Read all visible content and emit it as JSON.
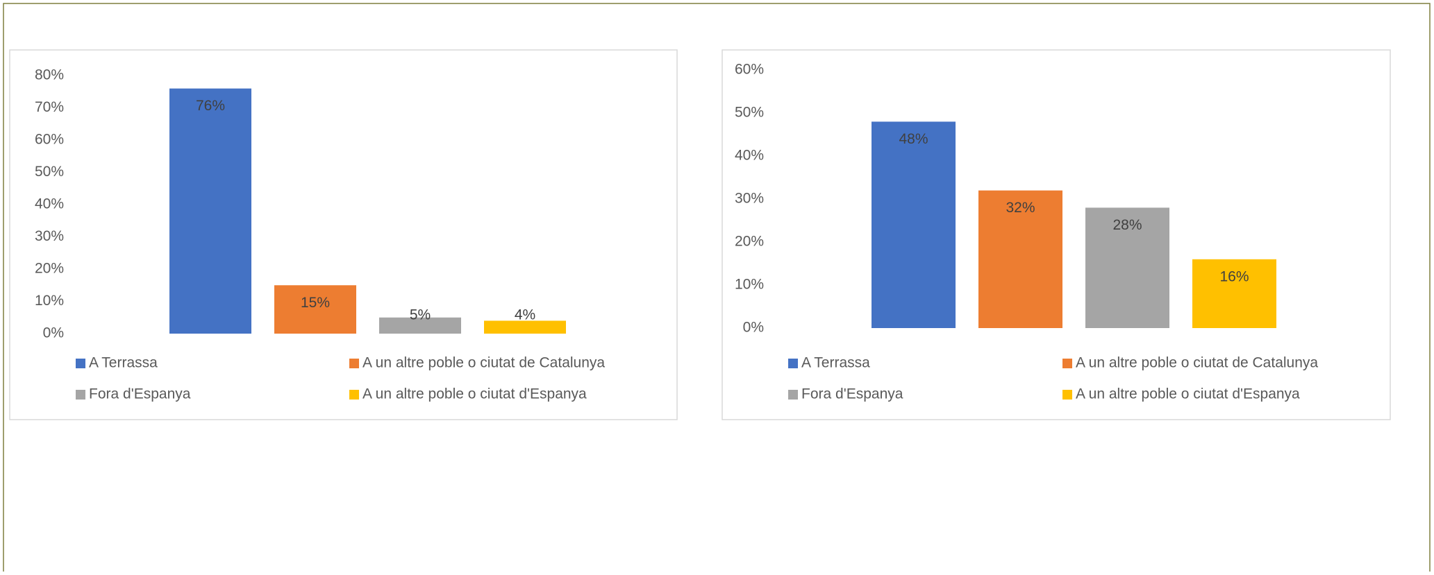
{
  "chart_data": [
    {
      "type": "bar",
      "series": [
        {
          "name": "A Terrassa",
          "color": "#4472c4",
          "values": [
            76
          ],
          "value_labels": [
            "76%"
          ]
        },
        {
          "name": "A un altre poble o ciutat de Catalunya",
          "color": "#ed7d31",
          "values": [
            15
          ],
          "value_labels": [
            "15%"
          ]
        },
        {
          "name": "Fora d'Espanya",
          "color": "#a5a5a5",
          "values": [
            5
          ],
          "value_labels": [
            "5%"
          ]
        },
        {
          "name": "A un altre poble o ciutat d'Espanya",
          "color": "#ffc000",
          "values": [
            4
          ],
          "value_labels": [
            "4%"
          ]
        }
      ],
      "ylim": [
        0,
        80
      ],
      "yticks": [
        {
          "value": 0,
          "label": "0%"
        },
        {
          "value": 10,
          "label": "10%"
        },
        {
          "value": 20,
          "label": "20%"
        },
        {
          "value": 30,
          "label": "30%"
        },
        {
          "value": 40,
          "label": "40%"
        },
        {
          "value": 50,
          "label": "50%"
        },
        {
          "value": 60,
          "label": "60%"
        },
        {
          "value": 70,
          "label": "70%"
        },
        {
          "value": 80,
          "label": "80%"
        }
      ],
      "grid": false,
      "legend": "bottom"
    },
    {
      "type": "bar",
      "series": [
        {
          "name": "A Terrassa",
          "color": "#4472c4",
          "values": [
            48
          ],
          "value_labels": [
            "48%"
          ]
        },
        {
          "name": "A un altre poble o ciutat de Catalunya",
          "color": "#ed7d31",
          "values": [
            32
          ],
          "value_labels": [
            "32%"
          ]
        },
        {
          "name": "Fora d'Espanya",
          "color": "#a5a5a5",
          "values": [
            28
          ],
          "value_labels": [
            "28%"
          ]
        },
        {
          "name": "A un altre poble o ciutat d'Espanya",
          "color": "#ffc000",
          "values": [
            16
          ],
          "value_labels": [
            "16%"
          ]
        }
      ],
      "ylim": [
        0,
        60
      ],
      "yticks": [
        {
          "value": 0,
          "label": "0%"
        },
        {
          "value": 10,
          "label": "10%"
        },
        {
          "value": 20,
          "label": "20%"
        },
        {
          "value": 30,
          "label": "30%"
        },
        {
          "value": 40,
          "label": "40%"
        },
        {
          "value": 50,
          "label": "50%"
        },
        {
          "value": 60,
          "label": "60%"
        }
      ],
      "grid": false,
      "legend": "bottom"
    }
  ]
}
